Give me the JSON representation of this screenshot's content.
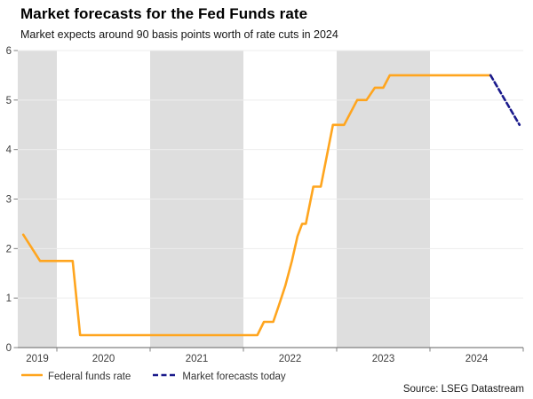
{
  "header": {
    "title": "Market forecasts for the Fed Funds rate",
    "subtitle": "Market expects around 90 basis points worth of rate cuts in 2024"
  },
  "source": {
    "label": "Source: LSEG Datastream"
  },
  "legend": [
    {
      "label": "Federal funds rate",
      "color": "#FFA51E",
      "style": "solid"
    },
    {
      "label": "Market forecasts today",
      "color": "#1A1A8C",
      "style": "dashed"
    }
  ],
  "colors": {
    "band": "#dedede",
    "gridline": "#ededed",
    "axis": "#808080",
    "tick_label": "#3d3d3d",
    "fed_line": "#FFA51E",
    "forecast_line": "#1A1A8C"
  },
  "chart_data": {
    "type": "line",
    "title": "Market forecasts for the Fed Funds rate",
    "subtitle": "Market expects around 90 basis points worth of rate cuts in 2024",
    "xlabel": "",
    "ylabel": "",
    "xlim": [
      2019.581,
      2025.0
    ],
    "ylim": [
      0,
      6
    ],
    "y_ticks": [
      0,
      1,
      2,
      3,
      4,
      5,
      6
    ],
    "x_boundary_ticks": [
      2020,
      2021,
      2022,
      2023,
      2024,
      2025
    ],
    "x_year_labels": [
      "2019",
      "2020",
      "2021",
      "2022",
      "2023",
      "2024"
    ],
    "shaded_year_bands": [
      [
        2019.581,
        2020
      ],
      [
        2021,
        2022
      ],
      [
        2023,
        2024
      ]
    ],
    "grid": "horizontal",
    "legend_position": "bottom-left",
    "series": [
      {
        "name": "Federal funds rate",
        "color": "#FFA51E",
        "dash": null,
        "points": [
          [
            2019.64,
            2.28
          ],
          [
            2019.82,
            1.75
          ],
          [
            2020.17,
            1.75
          ],
          [
            2020.25,
            0.25
          ],
          [
            2022.15,
            0.25
          ],
          [
            2022.22,
            0.52
          ],
          [
            2022.32,
            0.52
          ],
          [
            2022.38,
            0.85
          ],
          [
            2022.45,
            1.25
          ],
          [
            2022.52,
            1.75
          ],
          [
            2022.58,
            2.25
          ],
          [
            2022.63,
            2.5
          ],
          [
            2022.67,
            2.5
          ],
          [
            2022.75,
            3.25
          ],
          [
            2022.83,
            3.25
          ],
          [
            2022.96,
            4.5
          ],
          [
            2023.08,
            4.5
          ],
          [
            2023.22,
            5.0
          ],
          [
            2023.32,
            5.0
          ],
          [
            2023.41,
            5.25
          ],
          [
            2023.5,
            5.25
          ],
          [
            2023.57,
            5.5
          ],
          [
            2024.65,
            5.5
          ]
        ]
      },
      {
        "name": "Market forecasts today",
        "color": "#1A1A8C",
        "dash": "5.5,3.5",
        "points": [
          [
            2024.65,
            5.5
          ],
          [
            2024.96,
            4.5
          ]
        ]
      }
    ]
  }
}
